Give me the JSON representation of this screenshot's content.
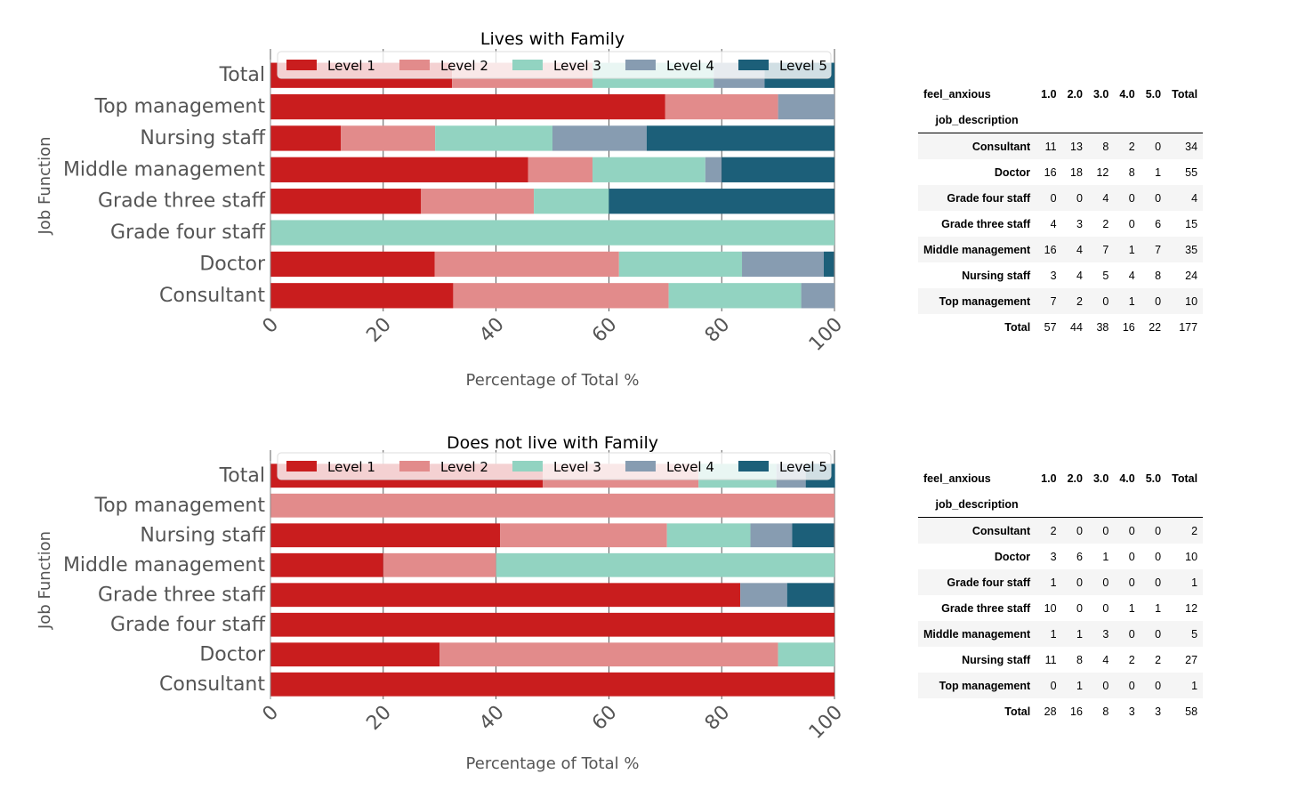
{
  "colors": {
    "Level 1": "#c91d1e",
    "Level 2": "#e28b8b",
    "Level 3": "#92d3c1",
    "Level 4": "#879cb1",
    "Level 5": "#1c5f79"
  },
  "chart_data": [
    {
      "type": "bar",
      "orientation": "horizontal",
      "stacked": true,
      "title": "Lives with Family",
      "xlabel": "Percentage of Total %",
      "ylabel": "Job Function",
      "xlim": [
        0,
        100
      ],
      "xticks": [
        0,
        20,
        40,
        60,
        80,
        100
      ],
      "legend": "top",
      "categories": [
        "Total",
        "Top management",
        "Nursing staff",
        "Middle management",
        "Grade three staff",
        "Grade four staff",
        "Doctor",
        "Consultant"
      ],
      "series": [
        {
          "name": "Level 1",
          "values": [
            32.2,
            70,
            12.5,
            45.7,
            26.7,
            0,
            29.1,
            32.4
          ]
        },
        {
          "name": "Level 2",
          "values": [
            24.9,
            20,
            16.7,
            11.4,
            20,
            0,
            32.7,
            38.2
          ]
        },
        {
          "name": "Level 3",
          "values": [
            21.5,
            0,
            20.8,
            20,
            13.3,
            100,
            21.8,
            23.5
          ]
        },
        {
          "name": "Level 4",
          "values": [
            9.0,
            10,
            16.7,
            2.9,
            0,
            0,
            14.5,
            5.9
          ]
        },
        {
          "name": "Level 5",
          "values": [
            12.4,
            0,
            33.3,
            20,
            40,
            0,
            1.8,
            0
          ]
        }
      ]
    },
    {
      "type": "bar",
      "orientation": "horizontal",
      "stacked": true,
      "title": "Does not live with Family",
      "xlabel": "Percentage of Total %",
      "ylabel": "Job Function",
      "xlim": [
        0,
        100
      ],
      "xticks": [
        0,
        20,
        40,
        60,
        80,
        100
      ],
      "legend": "top",
      "categories": [
        "Total",
        "Top management",
        "Nursing staff",
        "Middle management",
        "Grade three staff",
        "Grade four staff",
        "Doctor",
        "Consultant"
      ],
      "series": [
        {
          "name": "Level 1",
          "values": [
            48.3,
            0,
            40.7,
            20,
            83.3,
            100,
            30,
            100
          ]
        },
        {
          "name": "Level 2",
          "values": [
            27.6,
            100,
            29.6,
            20,
            0,
            0,
            60,
            0
          ]
        },
        {
          "name": "Level 3",
          "values": [
            13.8,
            0,
            14.8,
            60,
            0,
            0,
            10,
            0
          ]
        },
        {
          "name": "Level 4",
          "values": [
            5.2,
            0,
            7.4,
            0,
            8.3,
            0,
            0,
            0
          ]
        },
        {
          "name": "Level 5",
          "values": [
            5.2,
            0,
            7.4,
            0,
            8.3,
            0,
            0,
            0
          ]
        }
      ]
    }
  ],
  "tables": [
    {
      "col_name": "feel_anxious",
      "index_name": "job_description",
      "columns": [
        "1.0",
        "2.0",
        "3.0",
        "4.0",
        "5.0",
        "Total"
      ],
      "rows": [
        {
          "label": "Consultant",
          "values": [
            "11",
            "13",
            "8",
            "2",
            "0",
            "34"
          ]
        },
        {
          "label": "Doctor",
          "values": [
            "16",
            "18",
            "12",
            "8",
            "1",
            "55"
          ]
        },
        {
          "label": "Grade four staff",
          "values": [
            "0",
            "0",
            "4",
            "0",
            "0",
            "4"
          ]
        },
        {
          "label": "Grade three staff",
          "values": [
            "4",
            "3",
            "2",
            "0",
            "6",
            "15"
          ]
        },
        {
          "label": "Middle management",
          "values": [
            "16",
            "4",
            "7",
            "1",
            "7",
            "35"
          ]
        },
        {
          "label": "Nursing staff",
          "values": [
            "3",
            "4",
            "5",
            "4",
            "8",
            "24"
          ]
        },
        {
          "label": "Top management",
          "values": [
            "7",
            "2",
            "0",
            "1",
            "0",
            "10"
          ]
        },
        {
          "label": "Total",
          "values": [
            "57",
            "44",
            "38",
            "16",
            "22",
            "177"
          ]
        }
      ]
    },
    {
      "col_name": "feel_anxious",
      "index_name": "job_description",
      "columns": [
        "1.0",
        "2.0",
        "3.0",
        "4.0",
        "5.0",
        "Total"
      ],
      "rows": [
        {
          "label": "Consultant",
          "values": [
            "2",
            "0",
            "0",
            "0",
            "0",
            "2"
          ]
        },
        {
          "label": "Doctor",
          "values": [
            "3",
            "6",
            "1",
            "0",
            "0",
            "10"
          ]
        },
        {
          "label": "Grade four staff",
          "values": [
            "1",
            "0",
            "0",
            "0",
            "0",
            "1"
          ]
        },
        {
          "label": "Grade three staff",
          "values": [
            "10",
            "0",
            "0",
            "1",
            "1",
            "12"
          ]
        },
        {
          "label": "Middle management",
          "values": [
            "1",
            "1",
            "3",
            "0",
            "0",
            "5"
          ]
        },
        {
          "label": "Nursing staff",
          "values": [
            "11",
            "8",
            "4",
            "2",
            "2",
            "27"
          ]
        },
        {
          "label": "Top management",
          "values": [
            "0",
            "1",
            "0",
            "0",
            "0",
            "1"
          ]
        },
        {
          "label": "Total",
          "values": [
            "28",
            "16",
            "8",
            "3",
            "3",
            "58"
          ]
        }
      ]
    }
  ]
}
